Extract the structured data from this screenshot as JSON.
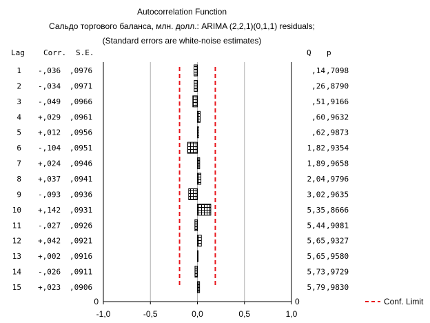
{
  "chart_data": {
    "type": "bar",
    "title": "Autocorrelation Function",
    "subtitle_lines": [
      "Сальдо торгового баланса, млн. долл.: ARIMA (2,2,1)(0,1,1) residuals;",
      "(Standard errors are white-noise estimates)"
    ],
    "columns": {
      "lag": "Lag",
      "corr": "Corr.",
      "se": "S.E.",
      "q": "Q",
      "p": "p"
    },
    "lags": [
      1,
      2,
      3,
      4,
      5,
      6,
      7,
      8,
      9,
      10,
      11,
      12,
      13,
      14,
      15
    ],
    "corr_labels": [
      "-,036",
      "-,034",
      "-,049",
      "+,029",
      "+,012",
      "-,104",
      "+,024",
      "+,037",
      "-,093",
      "+,142",
      "-,027",
      "+,042",
      "+,002",
      "-,026",
      "+,023"
    ],
    "se_labels": [
      ",0976",
      ",0971",
      ",0966",
      ",0961",
      ",0956",
      ",0951",
      ",0946",
      ",0941",
      ",0936",
      ",0931",
      ",0926",
      ",0921",
      ",0916",
      ",0911",
      ",0906"
    ],
    "q_labels": [
      ",14",
      ",26",
      ",51",
      ",60",
      ",62",
      "1,82",
      "1,89",
      "2,04",
      "3,02",
      "5,35",
      "5,44",
      "5,65",
      "5,65",
      "5,73",
      "5,79"
    ],
    "p_labels": [
      ",7098",
      ",8790",
      ",9166",
      ",9632",
      ",9873",
      ",9354",
      ",9658",
      ",9796",
      ",9635",
      ",8666",
      ",9081",
      ",9327",
      ",9580",
      ",9729",
      ",9830"
    ],
    "values": [
      -0.036,
      -0.034,
      -0.049,
      0.029,
      0.012,
      -0.104,
      0.024,
      0.037,
      -0.093,
      0.142,
      -0.027,
      0.042,
      0.002,
      -0.026,
      0.023
    ],
    "conf_limit": 0.19,
    "xlim": [
      -1.0,
      1.0
    ],
    "xticks": [
      "-1,0",
      "-0,5",
      "0,0",
      "0,5",
      "1,0"
    ],
    "y_edge_label": "0",
    "legend": {
      "label": "Conf. Limit",
      "placement": "bottom-right"
    },
    "colors": {
      "conf_limit": "#e8151b",
      "bars": "#000000",
      "grid": "#b0b0b0"
    },
    "grid": true
  }
}
